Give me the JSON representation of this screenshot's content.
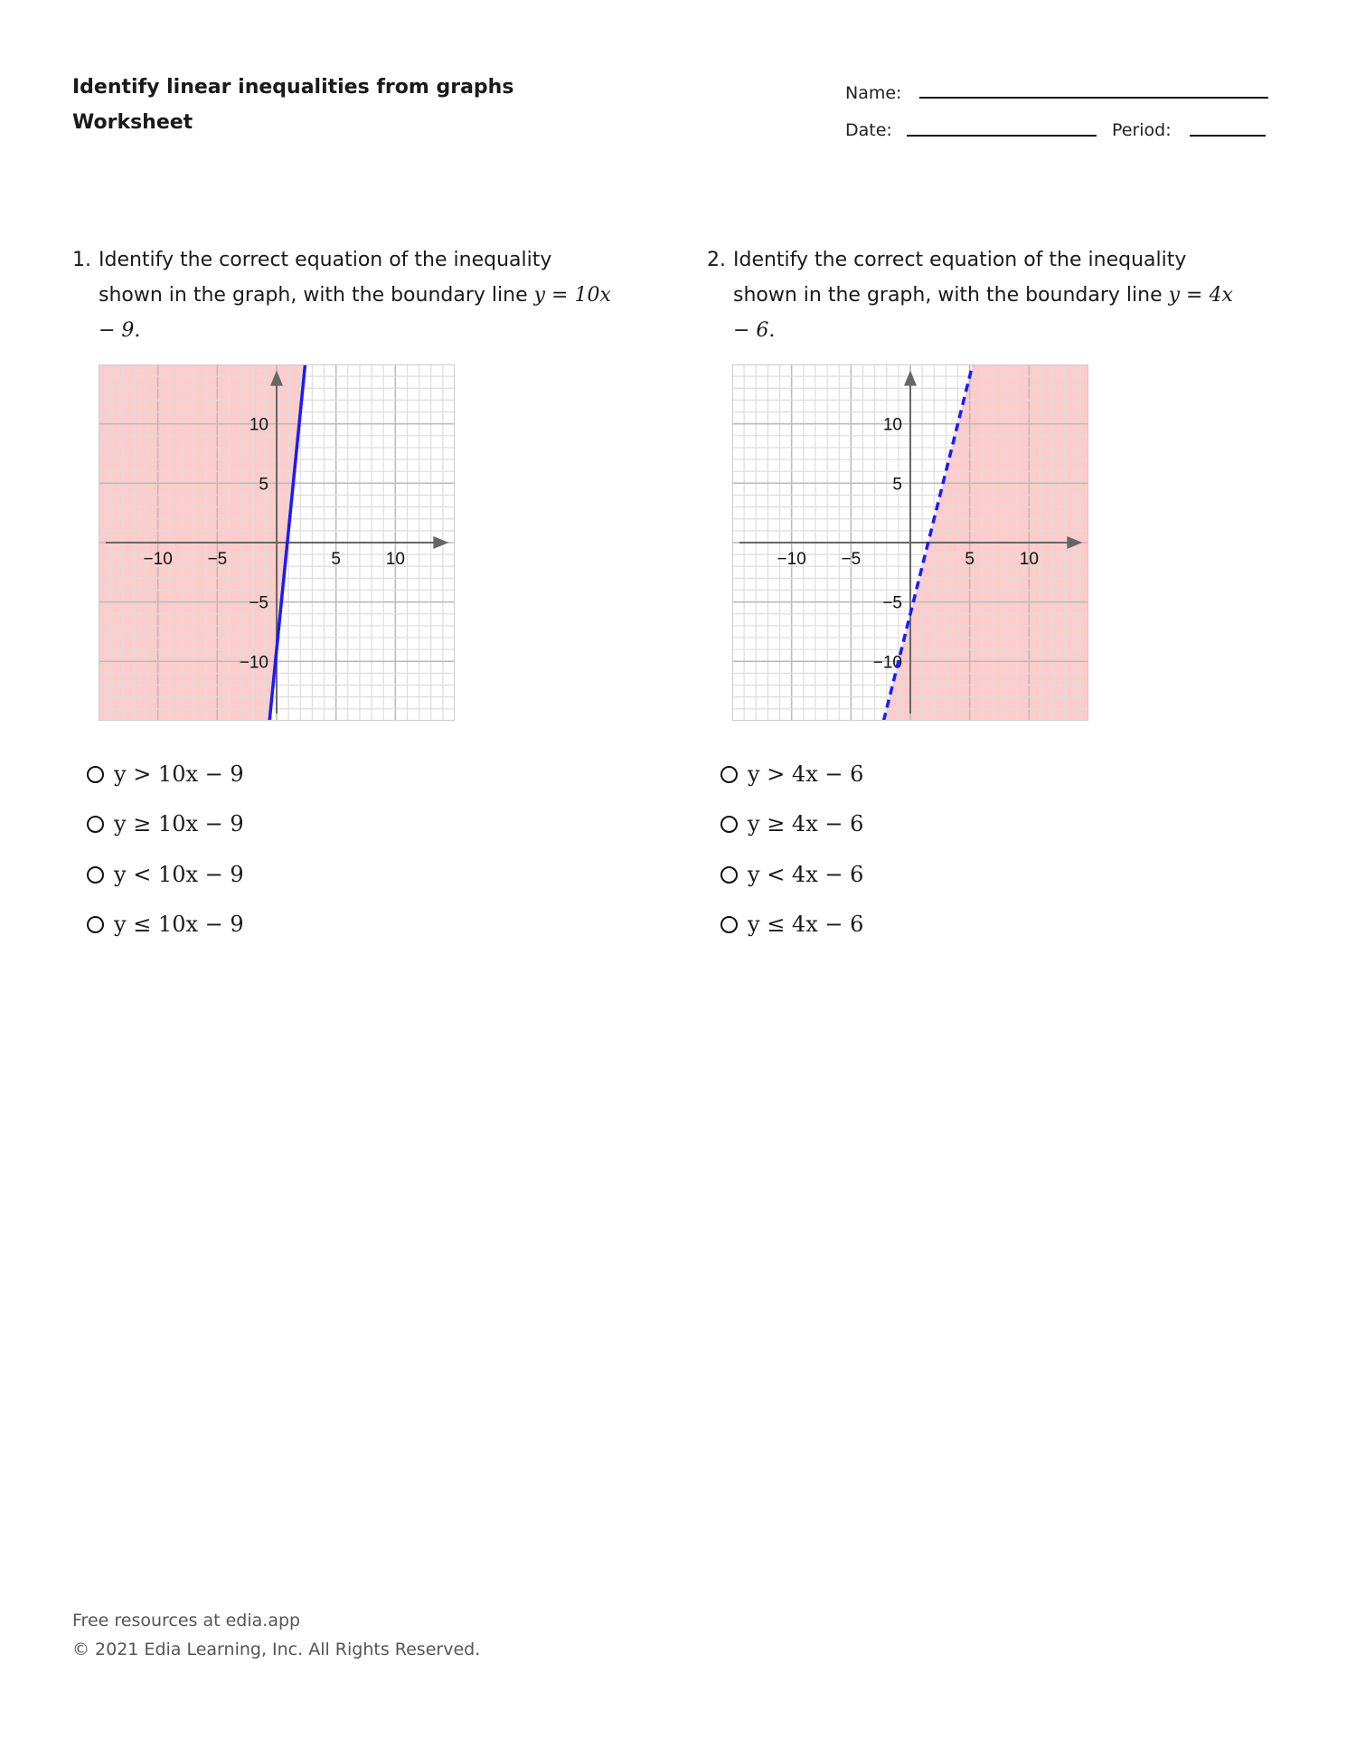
{
  "header": {
    "title_line1": "Identify linear inequalities from graphs",
    "title_line2": "Worksheet",
    "name_label": "Name:",
    "date_label": "Date:",
    "period_label": "Period:"
  },
  "questions": [
    {
      "number": "1.",
      "text": "Identify the correct equation of the inequality shown in the graph, with the boundary line",
      "equation": "y = 10x − 9.",
      "options": [
        "y > 10x − 9",
        "y ≥ 10x − 9",
        "y < 10x − 9",
        "y ≤ 10x − 9"
      ]
    },
    {
      "number": "2.",
      "text": "Identify the correct equation of the inequality shown in the graph, with the boundary line",
      "equation": "y = 4x − 6.",
      "options": [
        "y > 4x − 6",
        "y ≥ 4x − 6",
        "y < 4x − 6",
        "y ≤ 4x − 6"
      ]
    }
  ],
  "chart_data": [
    {
      "type": "line",
      "xlim": [
        -15,
        15
      ],
      "ylim": [
        -15,
        15
      ],
      "xticks": [
        "−10",
        "−5",
        "5",
        "10"
      ],
      "xtick_values": [
        -10,
        -5,
        5,
        10
      ],
      "yticks": [
        "10",
        "5",
        "−5",
        "−10"
      ],
      "ytick_values": [
        10,
        5,
        -5,
        -10
      ],
      "grid": true,
      "boundary": {
        "slope": 10,
        "intercept": -9,
        "style": "solid",
        "color": "#1a1aff"
      },
      "shaded_side": "above",
      "shade_color": "#ff0000"
    },
    {
      "type": "line",
      "xlim": [
        -15,
        15
      ],
      "ylim": [
        -15,
        15
      ],
      "xticks": [
        "−10",
        "−5",
        "5",
        "10"
      ],
      "xtick_values": [
        -10,
        -5,
        5,
        10
      ],
      "yticks": [
        "10",
        "5",
        "−5",
        "−10"
      ],
      "ytick_values": [
        10,
        5,
        -5,
        -10
      ],
      "grid": true,
      "boundary": {
        "slope": 4,
        "intercept": -6,
        "style": "dashed",
        "color": "#1a1aff"
      },
      "shaded_side": "below",
      "shade_color": "#ff0000"
    }
  ],
  "footer": {
    "line1": "Free resources at edia.app",
    "line2": "© 2021 Edia Learning, Inc. All Rights Reserved."
  }
}
